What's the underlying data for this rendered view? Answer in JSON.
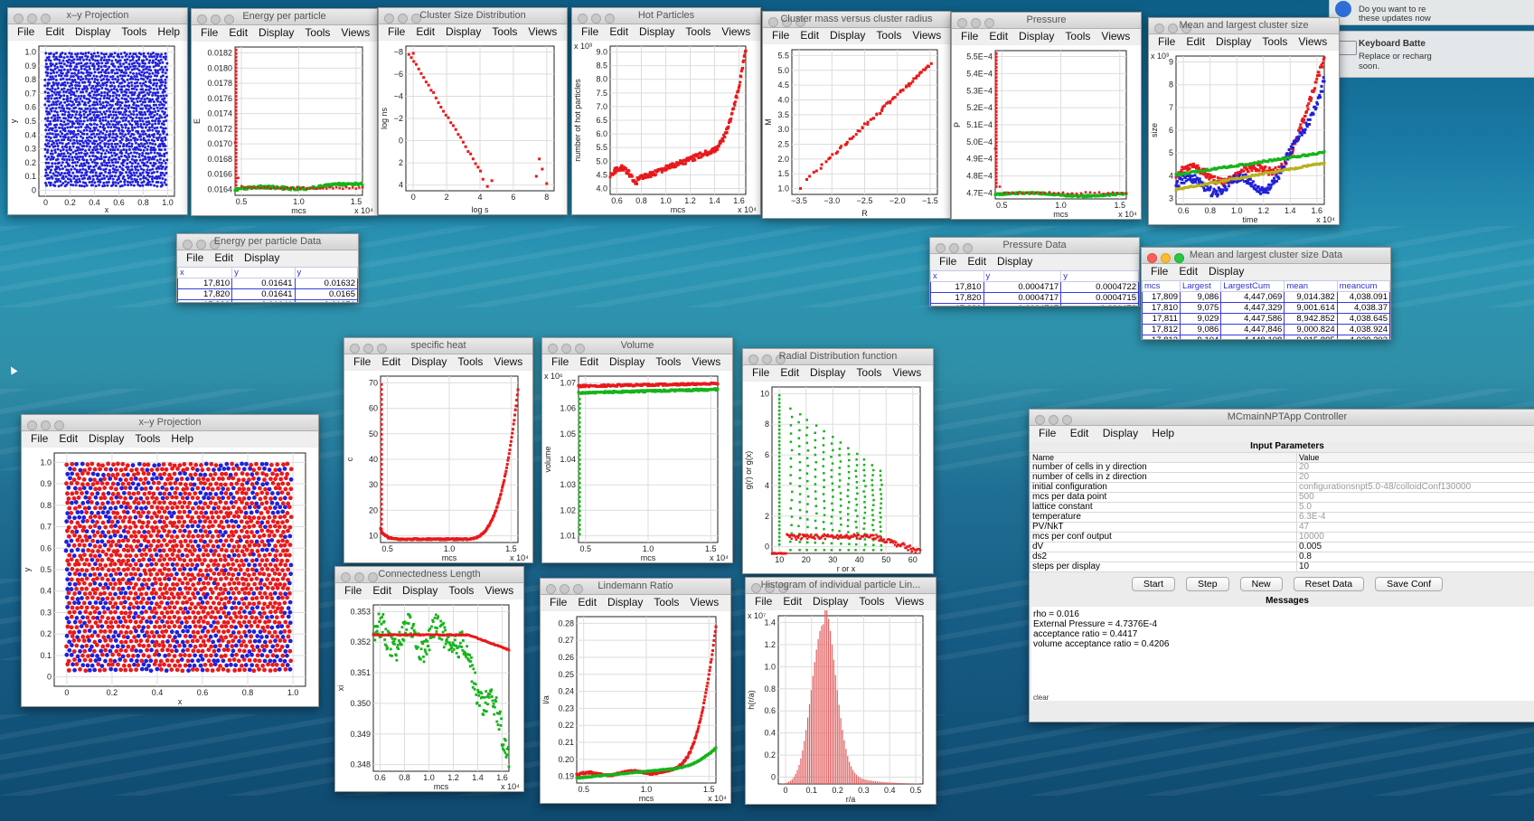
{
  "windows": {
    "xy_top": {
      "title": "x–y Projection",
      "menu": [
        "File",
        "Edit",
        "Display",
        "Tools",
        "Help"
      ],
      "xlabel": "x",
      "ylabel": "y",
      "xticks": [
        "0",
        "0.2",
        "0.4",
        "0.6",
        "0.8",
        "1.0"
      ],
      "yticks": [
        "0",
        "0.1",
        "0.2",
        "0.3",
        "0.4",
        "0.5",
        "0.6",
        "0.7",
        "0.8",
        "0.9",
        "1.0"
      ]
    },
    "energy": {
      "title": "Energy per particle",
      "menu": [
        "File",
        "Edit",
        "Display",
        "Tools",
        "Views",
        "Help"
      ],
      "xlabel": "mcs",
      "ylabel": "E",
      "xticks": [
        "0.5",
        "1.0",
        "1.5"
      ],
      "yticks": [
        "0.0164",
        "0.0166",
        "0.0168",
        "0.0170",
        "0.0172",
        "0.0174",
        "0.0176",
        "0.0178",
        "0.0180",
        "0.0182"
      ],
      "xexp": "x 10⁴"
    },
    "cluster_size": {
      "title": "Cluster Size Distribution",
      "menu": [
        "File",
        "Edit",
        "Display",
        "Tools",
        "Views",
        "Help"
      ],
      "xlabel": "log s",
      "ylabel": "log ns",
      "xticks": [
        "0",
        "2",
        "4",
        "6",
        "8"
      ],
      "yticks": [
        "4",
        "2",
        "0",
        "−2",
        "−4",
        "−6",
        "−8"
      ]
    },
    "hot": {
      "title": "Hot Particles",
      "menu": [
        "File",
        "Edit",
        "Display",
        "Tools",
        "Views",
        "Help"
      ],
      "xlabel": "mcs",
      "ylabel": "number of hot particles",
      "xticks": [
        "0.6",
        "0.8",
        "1.0",
        "1.2",
        "1.4",
        "1.6"
      ],
      "yticks": [
        "4.0",
        "4.5",
        "5.0",
        "5.5",
        "6.0",
        "6.5",
        "7.0",
        "7.5",
        "8.0",
        "8.5",
        "9.0"
      ],
      "xexp": "x 10⁴",
      "yexp": "x 10³"
    },
    "mass_radius": {
      "title": "Cluster mass versus cluster radius",
      "menu": [
        "File",
        "Edit",
        "Display",
        "Tools",
        "Views",
        "Help"
      ],
      "xlabel": "R",
      "ylabel": "M",
      "xticks": [
        "−3.5",
        "−3.0",
        "−2.5",
        "−2.0",
        "−1.5"
      ],
      "yticks": [
        "1.0",
        "1.5",
        "2.0",
        "2.5",
        "3.0",
        "3.5",
        "4.0",
        "4.5",
        "5.0",
        "5.5"
      ]
    },
    "pressure": {
      "title": "Pressure",
      "menu": [
        "File",
        "Edit",
        "Display",
        "Tools",
        "Views",
        "Help"
      ],
      "xlabel": "mcs",
      "ylabel": "P",
      "xticks": [
        "0.5",
        "1.0",
        "1.5"
      ],
      "yticks": [
        "4.7E−4",
        "4.8E−4",
        "4.9E−4",
        "5.0E−4",
        "5.1E−4",
        "5.2E−4",
        "5.3E−4",
        "5.4E−4",
        "5.5E−4"
      ],
      "xexp": "x 10⁴"
    },
    "mean_largest": {
      "title": "Mean and largest cluster size",
      "menu": [
        "File",
        "Edit",
        "Display",
        "Tools",
        "Views",
        "Help"
      ],
      "xlabel": "time",
      "ylabel": "size",
      "xticks": [
        "0.6",
        "0.8",
        "1.0",
        "1.2",
        "1.4",
        "1.6"
      ],
      "yticks": [
        "3",
        "4",
        "5",
        "6",
        "7",
        "8",
        "9"
      ],
      "xexp": "x 10⁴",
      "yexp": "x 10³"
    },
    "energy_data": {
      "title": "Energy per particle Data",
      "menu": [
        "File",
        "Edit",
        "Display"
      ],
      "headers": [
        "x",
        "y",
        "y"
      ],
      "rows": [
        [
          "17,810",
          "0.01641",
          "0.01632"
        ],
        [
          "17,820",
          "0.01641",
          "0.0165"
        ],
        [
          "17,830",
          "0.01641",
          "0.01651"
        ]
      ]
    },
    "pressure_data": {
      "title": "Pressure Data",
      "menu": [
        "File",
        "Edit",
        "Display"
      ],
      "headers": [
        "x",
        "y",
        "y"
      ],
      "rows": [
        [
          "17,810",
          "0.0004717",
          "0.0004722"
        ],
        [
          "17,820",
          "0.0004717",
          "0.0004715"
        ],
        [
          "17,830",
          "0.0004717",
          "0.000472"
        ]
      ]
    },
    "mean_data": {
      "title": "Mean and largest cluster size Data",
      "menu": [
        "File",
        "Edit",
        "Display"
      ],
      "headers": [
        "mcs",
        "Largest",
        "LargestCum",
        "mean",
        "meancum"
      ],
      "rows": [
        [
          "17,809",
          "9,086",
          "4,447,069",
          "9,014.382",
          "4,038.091"
        ],
        [
          "17,810",
          "9,075",
          "4,447,329",
          "9,001.614",
          "4,038.37"
        ],
        [
          "17,811",
          "9,029",
          "4,447,586",
          "8,942.852",
          "4,038.645"
        ],
        [
          "17,812",
          "9,086",
          "4,447,846",
          "9,000.824",
          "4,038.924"
        ],
        [
          "17,813",
          "9,104",
          "4,448,108",
          "9,015.895",
          "4,039.203"
        ]
      ]
    },
    "specific_heat": {
      "title": "specific heat",
      "menu": [
        "File",
        "Edit",
        "Display",
        "Tools",
        "Views",
        "Help"
      ],
      "xlabel": "mcs",
      "ylabel": "c",
      "xticks": [
        "0.5",
        "1.0",
        "1.5"
      ],
      "yticks": [
        "10",
        "20",
        "30",
        "40",
        "50",
        "60",
        "70"
      ],
      "xexp": "x 10⁴"
    },
    "volume": {
      "title": "Volume",
      "menu": [
        "File",
        "Edit",
        "Display",
        "Tools",
        "Views",
        "Help"
      ],
      "xlabel": "mcs",
      "ylabel": "volume",
      "xticks": [
        "0.5",
        "1.0",
        "1.5"
      ],
      "yticks": [
        "1.01",
        "1.02",
        "1.03",
        "1.04",
        "1.05",
        "1.06",
        "1.07"
      ],
      "xexp": "x 10⁴",
      "yexp": "x 10⁶"
    },
    "rdf": {
      "title": "Radial Distribution function",
      "menu": [
        "File",
        "Edit",
        "Display",
        "Tools",
        "Views",
        "Help"
      ],
      "xlabel": "r or x",
      "ylabel": "g(r) or g(x)",
      "xticks": [
        "10",
        "20",
        "30",
        "40",
        "50",
        "60"
      ],
      "yticks": [
        "0",
        "2",
        "4",
        "6",
        "8",
        "10"
      ]
    },
    "xy_big": {
      "title": "x–y Projection",
      "menu": [
        "File",
        "Edit",
        "Display",
        "Tools",
        "Help"
      ],
      "xlabel": "x",
      "ylabel": "y",
      "xticks": [
        "0",
        "0.2",
        "0.4",
        "0.6",
        "0.8",
        "1.0"
      ],
      "yticks": [
        "0",
        "0.1",
        "0.2",
        "0.3",
        "0.4",
        "0.5",
        "0.6",
        "0.7",
        "0.8",
        "0.9",
        "1.0"
      ]
    },
    "connectedness": {
      "title": "Connectedness Length",
      "menu": [
        "File",
        "Edit",
        "Display",
        "Tools",
        "Views",
        "Help"
      ],
      "xlabel": "mcs",
      "ylabel": "xi",
      "xticks": [
        "0.6",
        "0.8",
        "1.0",
        "1.2",
        "1.4",
        "1.6"
      ],
      "yticks": [
        "0.348",
        "0.349",
        "0.350",
        "0.351",
        "0.352",
        "0.353"
      ],
      "xexp": "x 10⁴"
    },
    "lindemann": {
      "title": "Lindemann Ratio",
      "menu": [
        "File",
        "Edit",
        "Display",
        "Tools",
        "Views",
        "Help"
      ],
      "xlabel": "mcs",
      "ylabel": "l/a",
      "xticks": [
        "0.5",
        "1.0",
        "1.5"
      ],
      "yticks": [
        "0.19",
        "0.20",
        "0.21",
        "0.22",
        "0.23",
        "0.24",
        "0.25",
        "0.26",
        "0.27",
        "0.28"
      ],
      "xexp": "x 10⁴"
    },
    "histogram": {
      "title": "Histogram of individual particle Lin...",
      "menu": [
        "File",
        "Edit",
        "Display",
        "Tools",
        "Views",
        "Help"
      ],
      "xlabel": "r/a",
      "ylabel": "h(r/a)",
      "xticks": [
        "0",
        "0.1",
        "0.2",
        "0.3",
        "0.4",
        "0.5"
      ],
      "yticks": [
        "0",
        "0.2",
        "0.4",
        "0.6",
        "0.8",
        "1.0",
        "1.2",
        "1.4"
      ],
      "yexp": "x 10⁷"
    }
  },
  "controller": {
    "title": "MCmainNPTApp Controller",
    "menu": [
      "File",
      "Edit",
      "Display",
      "Help"
    ],
    "input_title": "Input Parameters",
    "col_name": "Name",
    "col_value": "Value",
    "params": [
      {
        "name": "number of cells in y direction",
        "value": "20",
        "editable": false
      },
      {
        "name": "number of cells in z direction",
        "value": "20",
        "editable": false
      },
      {
        "name": "initial configuration",
        "value": "configurationsnpt5.0-48/colloidConf130000",
        "editable": false
      },
      {
        "name": "mcs per data point",
        "value": "500",
        "editable": false
      },
      {
        "name": "lattice constant",
        "value": "5.0",
        "editable": false
      },
      {
        "name": "temperature",
        "value": "6.3E-4",
        "editable": false
      },
      {
        "name": "PV/NkT",
        "value": "47",
        "editable": false
      },
      {
        "name": "mcs per conf output",
        "value": "10000",
        "editable": false
      },
      {
        "name": "dV",
        "value": "0.005",
        "editable": true
      },
      {
        "name": "ds2",
        "value": "0.8",
        "editable": true
      },
      {
        "name": "steps per display",
        "value": "10",
        "editable": true
      }
    ],
    "buttons": [
      "Start",
      "Step",
      "New",
      "Reset Data",
      "Save Conf"
    ],
    "messages_title": "Messages",
    "messages": [
      "rho = 0.016",
      "External Pressure = 4.7376E-4",
      "acceptance ratio = 0.4417",
      "volume acceptance ratio = 0.4206"
    ],
    "clear_label": "clear"
  },
  "notifications": [
    {
      "line1": "Do you want to re",
      "line2": "these updates now"
    },
    {
      "title": "Keyboard Batte",
      "line1": "Replace or recharg",
      "line2": "soon."
    }
  ],
  "colors": {
    "red": "#e8191b",
    "green": "#16b31a",
    "blue": "#2020d8",
    "olive": "#b8b020",
    "axis": "#222222"
  }
}
